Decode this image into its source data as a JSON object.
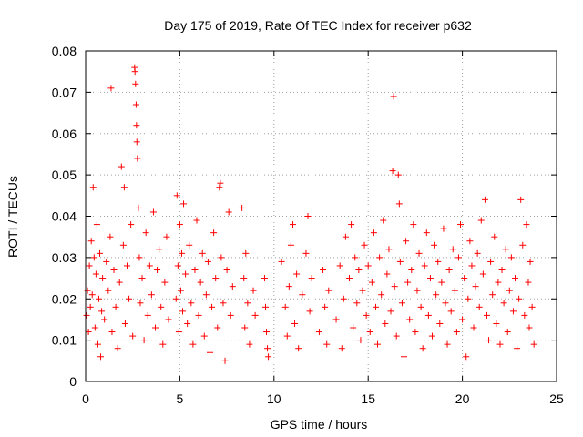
{
  "chart_data": {
    "type": "scatter",
    "title": "Day 175 of 2019, Rate Of TEC Index for receiver p632",
    "xlabel": "GPS time / hours",
    "ylabel": "ROTI / TECUs",
    "xlim": [
      0,
      25
    ],
    "ylim": [
      0,
      0.08
    ],
    "x_ticks": [
      0,
      5,
      10,
      15,
      20,
      25
    ],
    "y_ticks": [
      0,
      0.01,
      0.02,
      0.03,
      0.04,
      0.05,
      0.06,
      0.07,
      0.08
    ],
    "x_tick_labels": [
      "0",
      "5",
      "10",
      "15",
      "20",
      "25"
    ],
    "y_tick_labels": [
      "0",
      "0.01",
      "0.02",
      "0.03",
      "0.04",
      "0.05",
      "0.06",
      "0.07",
      "0.08"
    ],
    "grid": true,
    "marker": "+",
    "marker_color": "#ff0000",
    "series": [
      {
        "points": [
          [
            0.05,
            0.016
          ],
          [
            0.1,
            0.022
          ],
          [
            0.15,
            0.012
          ],
          [
            0.2,
            0.028
          ],
          [
            0.25,
            0.018
          ],
          [
            0.3,
            0.034
          ],
          [
            0.35,
            0.021
          ],
          [
            0.4,
            0.047
          ],
          [
            0.45,
            0.03
          ],
          [
            0.5,
            0.013
          ],
          [
            0.55,
            0.026
          ],
          [
            0.6,
            0.038
          ],
          [
            0.65,
            0.009
          ],
          [
            0.7,
            0.02
          ],
          [
            0.75,
            0.031
          ],
          [
            0.8,
            0.006
          ],
          [
            0.85,
            0.017
          ],
          [
            0.9,
            0.025
          ],
          [
            1.0,
            0.015
          ],
          [
            1.1,
            0.029
          ],
          [
            1.2,
            0.022
          ],
          [
            1.3,
            0.035
          ],
          [
            1.35,
            0.071
          ],
          [
            1.4,
            0.012
          ],
          [
            1.5,
            0.027
          ],
          [
            1.6,
            0.018
          ],
          [
            1.7,
            0.008
          ],
          [
            1.8,
            0.024
          ],
          [
            1.9,
            0.052
          ],
          [
            2.0,
            0.033
          ],
          [
            2.05,
            0.047
          ],
          [
            2.1,
            0.014
          ],
          [
            2.2,
            0.028
          ],
          [
            2.3,
            0.02
          ],
          [
            2.4,
            0.038
          ],
          [
            2.5,
            0.011
          ],
          [
            2.6,
            0.076
          ],
          [
            2.62,
            0.075
          ],
          [
            2.65,
            0.072
          ],
          [
            2.68,
            0.067
          ],
          [
            2.7,
            0.062
          ],
          [
            2.72,
            0.058
          ],
          [
            2.75,
            0.054
          ],
          [
            2.8,
            0.042
          ],
          [
            2.85,
            0.03
          ],
          [
            2.9,
            0.019
          ],
          [
            3.0,
            0.025
          ],
          [
            3.1,
            0.01
          ],
          [
            3.2,
            0.036
          ],
          [
            3.3,
            0.016
          ],
          [
            3.4,
            0.028
          ],
          [
            3.5,
            0.021
          ],
          [
            3.6,
            0.041
          ],
          [
            3.7,
            0.013
          ],
          [
            3.8,
            0.027
          ],
          [
            3.9,
            0.032
          ],
          [
            4.0,
            0.018
          ],
          [
            4.1,
            0.009
          ],
          [
            4.2,
            0.024
          ],
          [
            4.3,
            0.035
          ],
          [
            4.4,
            0.015
          ],
          [
            4.8,
            0.02
          ],
          [
            4.85,
            0.045
          ],
          [
            4.9,
            0.028
          ],
          [
            4.95,
            0.012
          ],
          [
            5.0,
            0.038
          ],
          [
            5.05,
            0.022
          ],
          [
            5.1,
            0.031
          ],
          [
            5.15,
            0.017
          ],
          [
            5.2,
            0.043
          ],
          [
            5.3,
            0.026
          ],
          [
            5.4,
            0.014
          ],
          [
            5.5,
            0.033
          ],
          [
            5.6,
            0.019
          ],
          [
            5.7,
            0.009
          ],
          [
            5.8,
            0.027
          ],
          [
            5.9,
            0.039
          ],
          [
            6.0,
            0.016
          ],
          [
            6.1,
            0.024
          ],
          [
            6.2,
            0.031
          ],
          [
            6.3,
            0.011
          ],
          [
            6.4,
            0.021
          ],
          [
            6.5,
            0.029
          ],
          [
            6.6,
            0.007
          ],
          [
            6.7,
            0.018
          ],
          [
            6.8,
            0.036
          ],
          [
            6.9,
            0.025
          ],
          [
            7.0,
            0.013
          ],
          [
            7.1,
            0.047
          ],
          [
            7.15,
            0.048
          ],
          [
            7.2,
            0.03
          ],
          [
            7.3,
            0.019
          ],
          [
            7.4,
            0.005
          ],
          [
            7.5,
            0.027
          ],
          [
            7.6,
            0.041
          ],
          [
            7.7,
            0.016
          ],
          [
            7.8,
            0.023
          ],
          [
            8.3,
            0.042
          ],
          [
            8.4,
            0.025
          ],
          [
            8.45,
            0.013
          ],
          [
            8.5,
            0.031
          ],
          [
            8.6,
            0.019
          ],
          [
            8.7,
            0.009
          ],
          [
            8.9,
            0.022
          ],
          [
            9.0,
            0.016
          ],
          [
            9.5,
            0.025
          ],
          [
            9.55,
            0.018
          ],
          [
            9.6,
            0.012
          ],
          [
            9.65,
            0.008
          ],
          [
            9.7,
            0.006
          ],
          [
            10.4,
            0.029
          ],
          [
            10.6,
            0.018
          ],
          [
            10.7,
            0.011
          ],
          [
            10.8,
            0.023
          ],
          [
            10.9,
            0.033
          ],
          [
            11.0,
            0.038
          ],
          [
            11.1,
            0.014
          ],
          [
            11.2,
            0.026
          ],
          [
            11.3,
            0.008
          ],
          [
            11.5,
            0.021
          ],
          [
            11.7,
            0.031
          ],
          [
            11.8,
            0.04
          ],
          [
            11.9,
            0.017
          ],
          [
            12.0,
            0.025
          ],
          [
            12.4,
            0.012
          ],
          [
            12.6,
            0.027
          ],
          [
            12.7,
            0.018
          ],
          [
            12.8,
            0.009
          ],
          [
            12.9,
            0.022
          ],
          [
            13.3,
            0.015
          ],
          [
            13.5,
            0.028
          ],
          [
            13.6,
            0.008
          ],
          [
            13.7,
            0.02
          ],
          [
            13.8,
            0.035
          ],
          [
            14.0,
            0.025
          ],
          [
            14.1,
            0.038
          ],
          [
            14.2,
            0.013
          ],
          [
            14.3,
            0.03
          ],
          [
            14.4,
            0.019
          ],
          [
            14.5,
            0.027
          ],
          [
            14.6,
            0.01
          ],
          [
            14.7,
            0.022
          ],
          [
            14.8,
            0.033
          ],
          [
            14.9,
            0.016
          ],
          [
            15.0,
            0.028
          ],
          [
            15.1,
            0.012
          ],
          [
            15.2,
            0.024
          ],
          [
            15.3,
            0.036
          ],
          [
            15.4,
            0.018
          ],
          [
            15.5,
            0.009
          ],
          [
            15.6,
            0.03
          ],
          [
            15.7,
            0.021
          ],
          [
            15.8,
            0.039
          ],
          [
            15.9,
            0.014
          ],
          [
            16.0,
            0.026
          ],
          [
            16.1,
            0.032
          ],
          [
            16.2,
            0.017
          ],
          [
            16.3,
            0.051
          ],
          [
            16.35,
            0.069
          ],
          [
            16.4,
            0.023
          ],
          [
            16.5,
            0.011
          ],
          [
            16.6,
            0.05
          ],
          [
            16.65,
            0.043
          ],
          [
            16.7,
            0.029
          ],
          [
            16.8,
            0.019
          ],
          [
            16.9,
            0.006
          ],
          [
            17.0,
            0.034
          ],
          [
            17.1,
            0.024
          ],
          [
            17.2,
            0.015
          ],
          [
            17.3,
            0.027
          ],
          [
            17.4,
            0.038
          ],
          [
            17.5,
            0.012
          ],
          [
            17.6,
            0.022
          ],
          [
            17.7,
            0.031
          ],
          [
            17.8,
            0.018
          ],
          [
            17.9,
            0.008
          ],
          [
            18.0,
            0.028
          ],
          [
            18.1,
            0.036
          ],
          [
            18.2,
            0.016
          ],
          [
            18.3,
            0.025
          ],
          [
            18.4,
            0.011
          ],
          [
            18.5,
            0.033
          ],
          [
            18.6,
            0.021
          ],
          [
            18.7,
            0.029
          ],
          [
            18.8,
            0.014
          ],
          [
            18.9,
            0.024
          ],
          [
            19.0,
            0.037
          ],
          [
            19.1,
            0.019
          ],
          [
            19.2,
            0.009
          ],
          [
            19.3,
            0.027
          ],
          [
            19.4,
            0.017
          ],
          [
            19.5,
            0.032
          ],
          [
            19.6,
            0.022
          ],
          [
            19.7,
            0.012
          ],
          [
            19.8,
            0.03
          ],
          [
            19.9,
            0.038
          ],
          [
            20.0,
            0.015
          ],
          [
            20.1,
            0.025
          ],
          [
            20.2,
            0.006
          ],
          [
            20.3,
            0.02
          ],
          [
            20.4,
            0.034
          ],
          [
            20.5,
            0.028
          ],
          [
            20.6,
            0.013
          ],
          [
            20.7,
            0.023
          ],
          [
            20.8,
            0.031
          ],
          [
            20.9,
            0.018
          ],
          [
            21.0,
            0.039
          ],
          [
            21.1,
            0.026
          ],
          [
            21.2,
            0.044
          ],
          [
            21.3,
            0.016
          ],
          [
            21.4,
            0.01
          ],
          [
            21.5,
            0.029
          ],
          [
            21.6,
            0.021
          ],
          [
            21.7,
            0.035
          ],
          [
            21.8,
            0.014
          ],
          [
            21.9,
            0.024
          ],
          [
            22.0,
            0.009
          ],
          [
            22.1,
            0.027
          ],
          [
            22.2,
            0.019
          ],
          [
            22.3,
            0.032
          ],
          [
            22.4,
            0.012
          ],
          [
            22.5,
            0.022
          ],
          [
            22.6,
            0.03
          ],
          [
            22.7,
            0.017
          ],
          [
            22.8,
            0.025
          ],
          [
            22.9,
            0.008
          ],
          [
            23.0,
            0.02
          ],
          [
            23.1,
            0.044
          ],
          [
            23.2,
            0.033
          ],
          [
            23.3,
            0.016
          ],
          [
            23.4,
            0.038
          ],
          [
            23.5,
            0.024
          ],
          [
            23.55,
            0.013
          ],
          [
            23.6,
            0.029
          ],
          [
            23.7,
            0.018
          ],
          [
            23.8,
            0.009
          ]
        ]
      }
    ]
  }
}
